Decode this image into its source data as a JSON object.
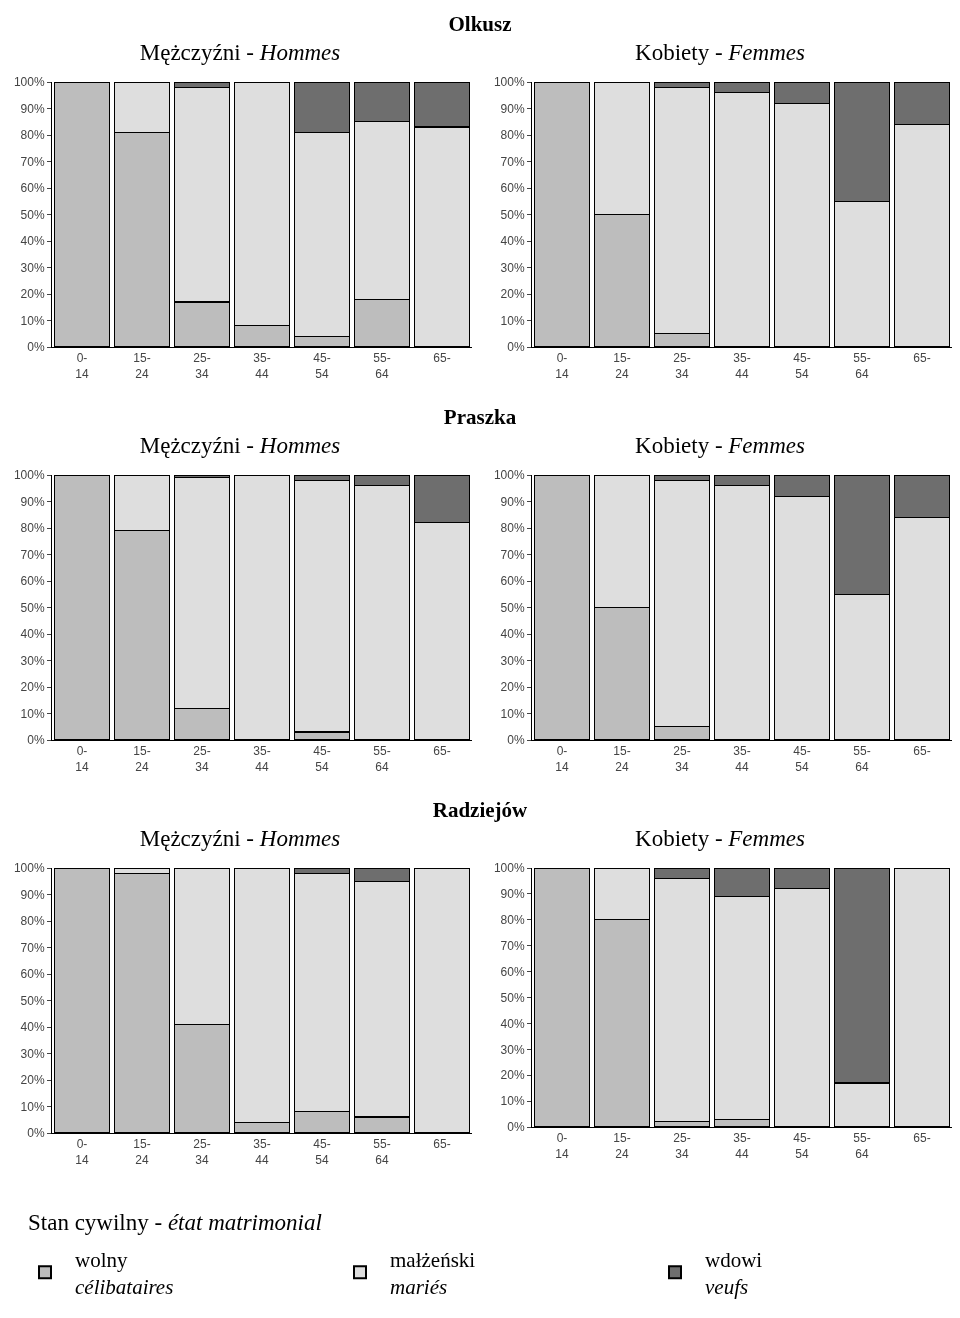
{
  "chart_data": [
    {
      "type": "bar",
      "title": "Olkusz",
      "subtitle": "Mężczyźni - Hommes",
      "stacked": true,
      "grid": false,
      "categories": [
        "0-14",
        "15-24",
        "25-34",
        "35-44",
        "45-54",
        "55-64",
        "65-"
      ],
      "ylim": [
        0,
        100
      ],
      "yticks": [
        {
          "value": 0,
          "label": "0%"
        },
        {
          "value": 10,
          "label": "10%"
        },
        {
          "value": 20,
          "label": "20%"
        },
        {
          "value": 30,
          "label": "30%"
        },
        {
          "value": 40,
          "label": "40%"
        },
        {
          "value": 50,
          "label": "50%"
        },
        {
          "value": 60,
          "label": "60%"
        },
        {
          "value": 70,
          "label": "70%"
        },
        {
          "value": 80,
          "label": "80%"
        },
        {
          "value": 90,
          "label": "90%"
        },
        {
          "value": 100,
          "label": "100%"
        }
      ],
      "series": [
        {
          "color": "#bdbdbd",
          "values": [
            100,
            81,
            17,
            8,
            4,
            18,
            0
          ]
        },
        {
          "color": "#dedede",
          "values": [
            0,
            19,
            81,
            92,
            77,
            67,
            83
          ]
        },
        {
          "color": "#6e6e6e",
          "values": [
            0,
            0,
            2,
            0,
            19,
            15,
            17
          ]
        }
      ]
    },
    {
      "type": "bar",
      "subtitle": "Kobiety - Femmes",
      "stacked": true,
      "grid": false,
      "categories": [
        "0-14",
        "15-24",
        "25-34",
        "35-44",
        "45-54",
        "55-64",
        "65-"
      ],
      "ylim": [
        0,
        100
      ],
      "yticks": [
        {
          "value": 0,
          "label": "0%"
        },
        {
          "value": 10,
          "label": "10%"
        },
        {
          "value": 20,
          "label": "20%"
        },
        {
          "value": 30,
          "label": "30%"
        },
        {
          "value": 40,
          "label": "40%"
        },
        {
          "value": 50,
          "label": "50%"
        },
        {
          "value": 60,
          "label": "60%"
        },
        {
          "value": 70,
          "label": "70%"
        },
        {
          "value": 80,
          "label": "80%"
        },
        {
          "value": 90,
          "label": "90%"
        },
        {
          "value": 100,
          "label": "100%"
        }
      ],
      "series": [
        {
          "color": "#bdbdbd",
          "values": [
            100,
            50,
            5,
            0,
            0,
            0,
            0
          ]
        },
        {
          "color": "#dedede",
          "values": [
            0,
            50,
            93,
            96,
            92,
            55,
            84
          ]
        },
        {
          "color": "#6e6e6e",
          "values": [
            0,
            0,
            2,
            4,
            8,
            45,
            16
          ]
        }
      ]
    },
    {
      "type": "bar",
      "title": "Praszka",
      "subtitle": "Mężczyźni - Hommes",
      "stacked": true,
      "grid": false,
      "categories": [
        "0-14",
        "15-24",
        "25-34",
        "35-44",
        "45-54",
        "55-64",
        "65-"
      ],
      "ylim": [
        0,
        100
      ],
      "yticks": [
        {
          "value": 0,
          "label": "0%"
        },
        {
          "value": 10,
          "label": "10%"
        },
        {
          "value": 20,
          "label": "20%"
        },
        {
          "value": 30,
          "label": "30%"
        },
        {
          "value": 40,
          "label": "40%"
        },
        {
          "value": 50,
          "label": "50%"
        },
        {
          "value": 60,
          "label": "60%"
        },
        {
          "value": 70,
          "label": "70%"
        },
        {
          "value": 80,
          "label": "80%"
        },
        {
          "value": 90,
          "label": "90%"
        },
        {
          "value": 100,
          "label": "100%"
        }
      ],
      "series": [
        {
          "color": "#bdbdbd",
          "values": [
            100,
            79,
            12,
            0,
            3,
            0,
            0
          ]
        },
        {
          "color": "#dedede",
          "values": [
            0,
            21,
            87,
            100,
            95,
            96,
            82
          ]
        },
        {
          "color": "#6e6e6e",
          "values": [
            0,
            0,
            1,
            0,
            2,
            4,
            18
          ]
        }
      ]
    },
    {
      "type": "bar",
      "subtitle": "Kobiety - Femmes",
      "stacked": true,
      "grid": false,
      "categories": [
        "0-14",
        "15-24",
        "25-34",
        "35-44",
        "45-54",
        "55-64",
        "65-"
      ],
      "ylim": [
        0,
        100
      ],
      "yticks": [
        {
          "value": 0,
          "label": "0%"
        },
        {
          "value": 10,
          "label": "10%"
        },
        {
          "value": 20,
          "label": "20%"
        },
        {
          "value": 30,
          "label": "30%"
        },
        {
          "value": 40,
          "label": "40%"
        },
        {
          "value": 50,
          "label": "50%"
        },
        {
          "value": 60,
          "label": "60%"
        },
        {
          "value": 70,
          "label": "70%"
        },
        {
          "value": 80,
          "label": "80%"
        },
        {
          "value": 90,
          "label": "90%"
        },
        {
          "value": 100,
          "label": "100%"
        }
      ],
      "series": [
        {
          "color": "#bdbdbd",
          "values": [
            100,
            50,
            5,
            0,
            0,
            0,
            0
          ]
        },
        {
          "color": "#dedede",
          "values": [
            0,
            50,
            93,
            96,
            92,
            55,
            84
          ]
        },
        {
          "color": "#6e6e6e",
          "values": [
            0,
            0,
            2,
            4,
            8,
            45,
            16
          ]
        }
      ]
    },
    {
      "type": "bar",
      "title": "Radziejów",
      "subtitle": "Mężczyźni - Hommes",
      "stacked": true,
      "grid": false,
      "categories": [
        "0-14",
        "15-24",
        "25-34",
        "35-44",
        "45-54",
        "55-64",
        "65-"
      ],
      "ylim": [
        0,
        100
      ],
      "yticks": [
        {
          "value": 0,
          "label": "0%"
        },
        {
          "value": 10,
          "label": "10%"
        },
        {
          "value": 20,
          "label": "20%"
        },
        {
          "value": 30,
          "label": "30%"
        },
        {
          "value": 40,
          "label": "40%"
        },
        {
          "value": 50,
          "label": "50%"
        },
        {
          "value": 60,
          "label": "60%"
        },
        {
          "value": 70,
          "label": "70%"
        },
        {
          "value": 80,
          "label": "80%"
        },
        {
          "value": 90,
          "label": "90%"
        },
        {
          "value": 100,
          "label": "100%"
        }
      ],
      "series": [
        {
          "color": "#bdbdbd",
          "values": [
            100,
            98,
            41,
            4,
            8,
            6,
            0
          ]
        },
        {
          "color": "#dedede",
          "values": [
            0,
            2,
            59,
            96,
            90,
            89,
            100
          ]
        },
        {
          "color": "#6e6e6e",
          "values": [
            0,
            0,
            0,
            0,
            2,
            5,
            0
          ]
        }
      ]
    },
    {
      "type": "bar",
      "subtitle": "Kobiety - Femmes",
      "stacked": true,
      "grid": false,
      "legend": "bottom",
      "legend_title": "Stan cywilny - état matrimonial",
      "categories": [
        "0-14",
        "15-24",
        "25-34",
        "35-44",
        "45-54",
        "55-64",
        "65-"
      ],
      "ylim": [
        0,
        100
      ],
      "yticks": [
        {
          "value": 0,
          "label": "0%"
        },
        {
          "value": 10,
          "label": "10%"
        },
        {
          "value": 20,
          "label": "20%"
        },
        {
          "value": 30,
          "label": "30%"
        },
        {
          "value": 40,
          "label": "40%"
        },
        {
          "value": 50,
          "label": "50%"
        },
        {
          "value": 60,
          "label": "60%"
        },
        {
          "value": 70,
          "label": "70%"
        },
        {
          "value": 80,
          "label": "80%"
        },
        {
          "value": 90,
          "label": "90%"
        },
        {
          "value": 100,
          "label": "100%"
        }
      ],
      "series": [
        {
          "name": "wolny\ncélibataires",
          "color": "#bdbdbd",
          "values": [
            100,
            80,
            2,
            3,
            0,
            0,
            0
          ]
        },
        {
          "name": "małżeński\nmariés",
          "color": "#dedede",
          "values": [
            0,
            20,
            94,
            86,
            92,
            17,
            100
          ]
        },
        {
          "name": "wdowi\nveufs",
          "color": "#6e6e6e",
          "values": [
            0,
            0,
            4,
            11,
            8,
            83,
            0
          ]
        }
      ]
    }
  ]
}
